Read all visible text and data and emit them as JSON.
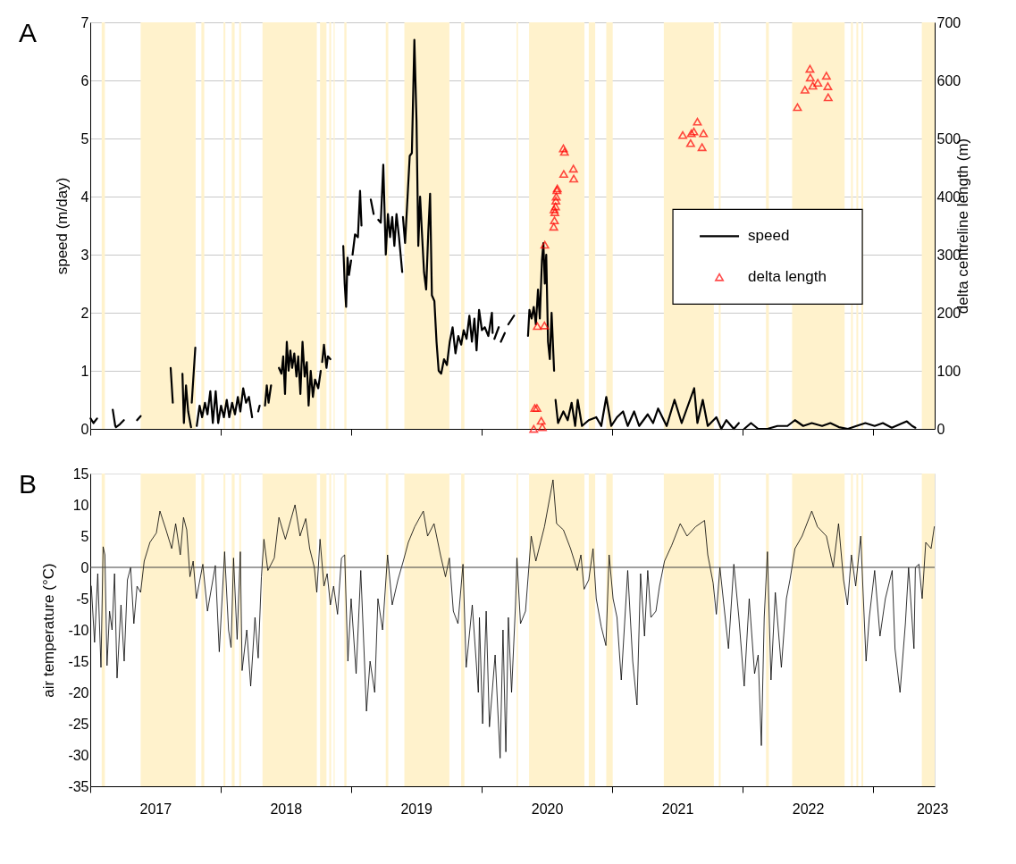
{
  "chart_data": [
    {
      "type": "line",
      "annotations": [
        "A"
      ],
      "ylabel": "speed (m/day)",
      "y2label": "delta centreline length (m)",
      "xlim": [
        "2017-01-01",
        "2023-06-22"
      ],
      "xticks": [
        {
          "value": "2017-01-01",
          "label": null
        },
        {
          "value": "2018-01-01",
          "label": null
        },
        {
          "value": "2019-01-01",
          "label": null
        },
        {
          "value": "2020-01-01",
          "label": null
        },
        {
          "value": "2021-01-01",
          "label": null
        },
        {
          "value": "2022-01-01",
          "label": null
        },
        {
          "value": "2023-01-01",
          "label": null
        }
      ],
      "ylim": [
        0,
        7
      ],
      "yticks": [
        0,
        1,
        2,
        3,
        4,
        5,
        6,
        7
      ],
      "y2lim": [
        0,
        700
      ],
      "y2ticks": [
        0,
        100,
        200,
        300,
        400,
        500,
        600,
        700
      ],
      "grid": "y",
      "legend": "right",
      "tick_labels": "y",
      "bands": [
        {
          "axis": "x",
          "from": "2017-02-02",
          "to": "2017-02-11",
          "color": "#fff2cc"
        },
        {
          "axis": "x",
          "from": "2017-05-22",
          "to": "2017-10-23",
          "color": "#fff2cc"
        },
        {
          "axis": "x",
          "from": "2017-11-08",
          "to": "2017-11-16",
          "color": "#fff2cc"
        },
        {
          "axis": "x",
          "from": "2018-01-09",
          "to": "2018-01-14",
          "color": "#fff2cc"
        },
        {
          "axis": "x",
          "from": "2018-02-01",
          "to": "2018-02-09",
          "color": "#fff2cc"
        },
        {
          "axis": "x",
          "from": "2018-02-22",
          "to": "2018-02-27",
          "color": "#fff2cc"
        },
        {
          "axis": "x",
          "from": "2018-04-28",
          "to": "2018-09-27",
          "color": "#fff2cc"
        },
        {
          "axis": "x",
          "from": "2018-10-06",
          "to": "2018-10-24",
          "color": "#fff2cc"
        },
        {
          "axis": "x",
          "from": "2018-11-01",
          "to": "2018-11-06",
          "color": "#fff2cc"
        },
        {
          "axis": "x",
          "from": "2018-11-13",
          "to": "2018-11-16",
          "color": "#fff2cc"
        },
        {
          "axis": "x",
          "from": "2018-12-13",
          "to": "2018-12-19",
          "color": "#fff2cc"
        },
        {
          "axis": "x",
          "from": "2019-04-08",
          "to": "2019-04-15",
          "color": "#fff2cc"
        },
        {
          "axis": "x",
          "from": "2019-05-30",
          "to": "2019-10-03",
          "color": "#fff2cc"
        },
        {
          "axis": "x",
          "from": "2019-11-05",
          "to": "2019-11-14",
          "color": "#fff2cc"
        },
        {
          "axis": "x",
          "from": "2020-04-08",
          "to": "2020-04-12",
          "color": "#fff2cc"
        },
        {
          "axis": "x",
          "from": "2020-05-13",
          "to": "2020-10-15",
          "color": "#fff2cc"
        },
        {
          "axis": "x",
          "from": "2020-10-27",
          "to": "2020-11-14",
          "color": "#fff2cc"
        },
        {
          "axis": "x",
          "from": "2020-12-15",
          "to": "2021-01-02",
          "color": "#fff2cc"
        },
        {
          "axis": "x",
          "from": "2021-05-25",
          "to": "2021-10-12",
          "color": "#fff2cc"
        },
        {
          "axis": "x",
          "from": "2021-10-26",
          "to": "2021-10-31",
          "color": "#fff2cc"
        },
        {
          "axis": "x",
          "from": "2022-03-07",
          "to": "2022-03-15",
          "color": "#fff2cc"
        },
        {
          "axis": "x",
          "from": "2022-05-19",
          "to": "2022-10-13",
          "color": "#fff2cc"
        },
        {
          "axis": "x",
          "from": "2022-10-31",
          "to": "2022-11-05",
          "color": "#fff2cc"
        },
        {
          "axis": "x",
          "from": "2022-11-15",
          "to": "2022-11-20",
          "color": "#fff2cc"
        },
        {
          "axis": "x",
          "from": "2022-11-29",
          "to": "2022-12-04",
          "color": "#fff2cc"
        },
        {
          "axis": "x",
          "from": "2023-05-17",
          "to": "2023-06-22",
          "color": "#fff2cc"
        }
      ],
      "series": [
        {
          "name": "speed",
          "type": "line",
          "color": "#000000",
          "x": [
            "2017-01-02",
            "2017-01-10",
            "2017-01-20",
            "2017-01-25",
            "2017-03-05",
            "2017-03-12",
            "2017-03-14",
            "2017-03-25",
            "2017-04-05",
            "2017-04-20",
            "2017-05-12",
            "2017-05-22",
            "2017-06-30",
            "2017-08-14",
            "2017-08-20",
            "2017-09-01",
            "2017-09-16",
            "2017-09-20",
            "2017-09-26",
            "2017-10-02",
            "2017-10-10",
            "2017-10-11",
            "2017-10-12",
            "2017-10-22",
            "2017-10-24",
            "2017-10-26",
            "2017-11-03",
            "2017-11-10",
            "2017-11-18",
            "2017-11-25",
            "2017-12-03",
            "2017-12-10",
            "2017-12-18",
            "2017-12-25",
            "2018-01-02",
            "2018-01-10",
            "2018-01-18",
            "2018-01-25",
            "2018-02-02",
            "2018-02-10",
            "2018-02-18",
            "2018-02-25",
            "2018-03-05",
            "2018-03-13",
            "2018-03-21",
            "2018-03-30",
            "2018-04-08",
            "2018-04-16",
            "2018-04-20",
            "2018-04-28",
            "2018-05-05",
            "2018-05-10",
            "2018-05-15",
            "2018-05-22",
            "2018-06-01",
            "2018-06-13",
            "2018-06-20",
            "2018-06-25",
            "2018-06-30",
            "2018-07-05",
            "2018-07-10",
            "2018-07-15",
            "2018-07-20",
            "2018-07-26",
            "2018-08-01",
            "2018-08-06",
            "2018-08-12",
            "2018-08-18",
            "2018-08-24",
            "2018-08-30",
            "2018-09-04",
            "2018-09-10",
            "2018-09-16",
            "2018-09-22",
            "2018-10-01",
            "2018-10-08",
            "2018-10-10",
            "2018-10-12",
            "2018-10-17",
            "2018-10-24",
            "2018-10-28",
            "2018-11-04",
            "2018-11-20",
            "2018-12-10",
            "2018-12-14",
            "2018-12-18",
            "2018-12-22",
            "2018-12-26",
            "2019-01-01",
            "2019-01-03",
            "2019-01-05",
            "2019-01-12",
            "2019-01-20",
            "2019-01-26",
            "2019-01-30",
            "2019-02-10",
            "2019-02-25",
            "2019-03-05",
            "2019-03-10",
            "2019-03-18",
            "2019-03-25",
            "2019-04-01",
            "2019-04-08",
            "2019-04-14",
            "2019-04-20",
            "2019-04-26",
            "2019-05-02",
            "2019-05-08",
            "2019-05-15",
            "2019-05-24",
            "2019-05-25",
            "2019-05-26",
            "2019-06-01",
            "2019-06-08",
            "2019-06-14",
            "2019-06-20",
            "2019-06-27",
            "2019-07-03",
            "2019-07-08",
            "2019-07-13",
            "2019-07-18",
            "2019-07-24",
            "2019-07-30",
            "2019-08-05",
            "2019-08-10",
            "2019-08-15",
            "2019-08-22",
            "2019-08-28",
            "2019-09-03",
            "2019-09-10",
            "2019-09-18",
            "2019-09-26",
            "2019-10-04",
            "2019-10-12",
            "2019-10-20",
            "2019-10-28",
            "2019-11-05",
            "2019-11-12",
            "2019-11-20",
            "2019-11-28",
            "2019-12-05",
            "2019-12-12",
            "2019-12-18",
            "2019-12-25",
            "2020-01-02",
            "2020-01-10",
            "2020-01-20",
            "2020-01-30",
            "2020-02-01",
            "2020-02-03",
            "2020-02-06",
            "2020-02-18",
            "2020-02-20",
            "2020-02-24",
            "2020-03-06",
            "2020-03-10",
            "2020-03-16",
            "2020-04-01",
            "2020-04-20",
            "2020-05-10",
            "2020-05-14",
            "2020-05-20",
            "2020-05-26",
            "2020-06-01",
            "2020-06-07",
            "2020-06-12",
            "2020-06-18",
            "2020-06-22",
            "2020-06-26",
            "2020-06-30",
            "2020-07-05",
            "2020-07-10",
            "2020-07-15",
            "2020-07-22",
            "2020-07-24",
            "2020-07-26",
            "2020-08-02",
            "2020-08-17",
            "2020-08-29",
            "2020-09-09",
            "2020-09-19",
            "2020-09-26",
            "2020-10-08",
            "2020-10-27",
            "2020-11-17",
            "2020-12-01",
            "2020-12-15",
            "2020-12-29",
            "2021-01-14",
            "2021-01-31",
            "2021-02-13",
            "2021-03-03",
            "2021-03-17",
            "2021-04-10",
            "2021-04-25",
            "2021-05-09",
            "2021-06-02",
            "2021-06-24",
            "2021-07-14",
            "2021-08-18",
            "2021-08-27",
            "2021-09-11",
            "2021-09-25",
            "2021-10-19",
            "2021-11-02",
            "2021-11-16",
            "2021-12-07",
            "2021-12-21",
            "2021-12-28",
            "2022-01-05",
            "2022-01-24",
            "2022-02-13",
            "2022-03-11",
            "2022-04-08",
            "2022-05-06",
            "2022-05-27",
            "2022-06-19",
            "2022-07-13",
            "2022-08-11",
            "2022-09-03",
            "2022-09-27",
            "2022-10-22",
            "2022-11-15",
            "2022-12-10",
            "2023-01-05",
            "2023-01-28",
            "2023-02-22",
            "2023-03-17",
            "2023-04-05",
            "2023-04-20",
            "2023-04-29"
          ],
          "values": [
            0.18,
            0.1,
            0.18,
            null,
            0.33,
            0.05,
            0.03,
            0.08,
            0.15,
            null,
            0.15,
            0.22,
            null,
            1.05,
            0.45,
            null,
            0.95,
            0.1,
            0.75,
            0.3,
            0.03,
            null,
            0.45,
            1.4,
            null,
            0.05,
            0.4,
            0.2,
            0.45,
            0.25,
            0.65,
            0.1,
            0.65,
            0.1,
            0.4,
            0.2,
            0.5,
            0.2,
            0.45,
            0.25,
            0.55,
            0.3,
            0.7,
            0.45,
            0.55,
            0.2,
            null,
            0.3,
            0.4,
            null,
            0.4,
            0.75,
            0.45,
            0.75,
            null,
            1.05,
            0.95,
            1.25,
            0.6,
            1.5,
            1.0,
            1.35,
            1.05,
            1.3,
            0.9,
            1.25,
            0.6,
            1.5,
            0.9,
            1.15,
            0.4,
            1.0,
            0.55,
            0.85,
            0.7,
            1.0,
            null,
            1.15,
            1.45,
            1.05,
            1.25,
            1.2,
            null,
            3.15,
            2.5,
            2.1,
            2.95,
            2.65,
            2.9,
            null,
            3.0,
            3.35,
            3.3,
            4.1,
            3.5,
            null,
            3.95,
            3.7,
            null,
            3.6,
            3.55,
            4.55,
            3.0,
            3.7,
            3.3,
            3.65,
            3.15,
            3.7,
            3.3,
            2.7,
            null,
            3.65,
            3.2,
            4.0,
            4.7,
            4.75,
            6.7,
            5.3,
            3.15,
            4.0,
            3.4,
            2.7,
            2.4,
            3.4,
            4.05,
            2.3,
            2.2,
            1.5,
            1.0,
            0.95,
            1.2,
            1.1,
            1.5,
            1.75,
            1.3,
            1.6,
            1.45,
            1.7,
            1.55,
            1.95,
            1.5,
            1.9,
            1.35,
            2.05,
            1.7,
            1.75,
            1.6,
            2.0,
            1.65,
            null,
            1.55,
            1.75,
            null,
            1.5,
            1.65,
            null,
            1.8,
            1.95,
            null,
            1.6,
            2.05,
            1.9,
            2.1,
            1.8,
            2.4,
            1.9,
            2.9,
            3.2,
            2.5,
            3.0,
            1.5,
            1.2,
            2.0,
            1.0,
            null,
            0.5,
            0.1,
            0.3,
            0.15,
            0.45,
            0.05,
            0.5,
            0.05,
            0.15,
            0.2,
            0.05,
            0.55,
            0.05,
            0.2,
            0.3,
            0.05,
            0.3,
            0.05,
            0.25,
            0.1,
            0.35,
            0.05,
            0.5,
            0.1,
            0.7,
            0.1,
            0.5,
            0.05,
            0.2,
            0.0,
            0.15,
            0.0,
            0.1,
            null,
            0.0,
            0.1,
            0.0,
            0.0,
            0.05,
            0.05,
            0.15,
            0.05,
            0.1,
            0.05,
            0.1,
            0.03,
            0.0,
            0.05,
            0.1,
            0.05,
            0.1,
            0.02,
            0.08,
            0.13,
            0.05,
            0.02
          ]
        },
        {
          "name": "delta length",
          "type": "scatter",
          "marker": "triangle",
          "axis": "y2",
          "color": "#ff0000",
          "x": [
            "2020-05-26",
            "2020-05-29",
            "2020-06-04",
            "2020-06-16",
            "2020-06-19",
            "2020-06-05",
            "2020-06-25",
            "2020-06-26",
            "2020-07-21",
            "2020-07-23",
            "2020-07-24",
            "2020-07-22",
            "2020-07-26",
            "2020-07-27",
            "2020-07-28",
            "2020-07-30",
            "2020-07-31",
            "2020-08-18",
            "2020-08-17",
            "2020-08-20",
            "2020-09-14",
            "2020-09-15",
            "2021-07-17",
            "2021-08-08",
            "2021-08-10",
            "2021-08-17",
            "2021-08-27",
            "2021-09-13",
            "2021-09-09",
            "2022-06-03",
            "2022-06-24",
            "2022-07-08",
            "2022-07-09",
            "2022-07-16",
            "2022-07-30",
            "2022-08-23",
            "2022-08-27",
            "2022-08-28"
          ],
          "values": [
            0,
            36,
            36,
            14,
            3,
            177,
            178,
            317,
            348,
            359,
            373,
            378,
            383,
            393,
            400,
            411,
            414,
            439,
            483,
            477,
            448,
            431,
            506,
            492,
            509,
            512,
            529,
            509,
            485,
            554,
            584,
            620,
            605,
            591,
            596,
            608,
            590,
            571
          ]
        }
      ]
    },
    {
      "type": "line",
      "annotations": [
        "B"
      ],
      "ylabel": "air temperature (°C)",
      "xlim": [
        "2017-01-01",
        "2023-06-22"
      ],
      "xticks": [
        {
          "value": "2017-01-01",
          "label": null
        },
        {
          "value": "2017-07-02",
          "label": "2017"
        },
        {
          "value": "2018-01-01",
          "label": null
        },
        {
          "value": "2018-07-02",
          "label": "2018"
        },
        {
          "value": "2019-01-01",
          "label": null
        },
        {
          "value": "2019-07-02",
          "label": "2019"
        },
        {
          "value": "2020-01-01",
          "label": null
        },
        {
          "value": "2020-07-02",
          "label": "2020"
        },
        {
          "value": "2021-01-01",
          "label": null
        },
        {
          "value": "2021-07-02",
          "label": "2021"
        },
        {
          "value": "2022-01-01",
          "label": null
        },
        {
          "value": "2022-07-02",
          "label": "2022"
        },
        {
          "value": "2023-01-01",
          "label": null
        },
        {
          "value": "2023-06-15",
          "label": "2023"
        }
      ],
      "ylim": [
        -35,
        15
      ],
      "yticks": [
        -35,
        -30,
        -25,
        -20,
        -15,
        -10,
        -5,
        0,
        5,
        10,
        15
      ],
      "grid": false,
      "ref_lines": [
        {
          "axis": "y",
          "value": 0,
          "color": "#404040"
        }
      ],
      "bands": [
        {
          "axis": "x",
          "from": "2017-02-02",
          "to": "2017-02-11",
          "color": "#fff2cc"
        },
        {
          "axis": "x",
          "from": "2017-05-22",
          "to": "2017-10-23",
          "color": "#fff2cc"
        },
        {
          "axis": "x",
          "from": "2017-11-08",
          "to": "2017-11-16",
          "color": "#fff2cc"
        },
        {
          "axis": "x",
          "from": "2018-01-09",
          "to": "2018-01-14",
          "color": "#fff2cc"
        },
        {
          "axis": "x",
          "from": "2018-02-01",
          "to": "2018-02-09",
          "color": "#fff2cc"
        },
        {
          "axis": "x",
          "from": "2018-02-22",
          "to": "2018-02-27",
          "color": "#fff2cc"
        },
        {
          "axis": "x",
          "from": "2018-04-28",
          "to": "2018-09-27",
          "color": "#fff2cc"
        },
        {
          "axis": "x",
          "from": "2018-10-06",
          "to": "2018-10-24",
          "color": "#fff2cc"
        },
        {
          "axis": "x",
          "from": "2018-11-01",
          "to": "2018-11-06",
          "color": "#fff2cc"
        },
        {
          "axis": "x",
          "from": "2018-11-13",
          "to": "2018-11-16",
          "color": "#fff2cc"
        },
        {
          "axis": "x",
          "from": "2018-12-13",
          "to": "2018-12-19",
          "color": "#fff2cc"
        },
        {
          "axis": "x",
          "from": "2019-04-08",
          "to": "2019-04-15",
          "color": "#fff2cc"
        },
        {
          "axis": "x",
          "from": "2019-05-30",
          "to": "2019-10-03",
          "color": "#fff2cc"
        },
        {
          "axis": "x",
          "from": "2019-11-05",
          "to": "2019-11-14",
          "color": "#fff2cc"
        },
        {
          "axis": "x",
          "from": "2020-04-08",
          "to": "2020-04-12",
          "color": "#fff2cc"
        },
        {
          "axis": "x",
          "from": "2020-05-13",
          "to": "2020-10-15",
          "color": "#fff2cc"
        },
        {
          "axis": "x",
          "from": "2020-10-27",
          "to": "2020-11-14",
          "color": "#fff2cc"
        },
        {
          "axis": "x",
          "from": "2020-12-15",
          "to": "2021-01-02",
          "color": "#fff2cc"
        },
        {
          "axis": "x",
          "from": "2021-05-25",
          "to": "2021-10-12",
          "color": "#fff2cc"
        },
        {
          "axis": "x",
          "from": "2021-10-26",
          "to": "2021-10-31",
          "color": "#fff2cc"
        },
        {
          "axis": "x",
          "from": "2022-03-07",
          "to": "2022-03-15",
          "color": "#fff2cc"
        },
        {
          "axis": "x",
          "from": "2022-05-19",
          "to": "2022-10-13",
          "color": "#fff2cc"
        },
        {
          "axis": "x",
          "from": "2022-10-31",
          "to": "2022-11-05",
          "color": "#fff2cc"
        },
        {
          "axis": "x",
          "from": "2022-11-15",
          "to": "2022-11-20",
          "color": "#fff2cc"
        },
        {
          "axis": "x",
          "from": "2022-11-29",
          "to": "2022-12-04",
          "color": "#fff2cc"
        },
        {
          "axis": "x",
          "from": "2023-05-17",
          "to": "2023-06-22",
          "color": "#fff2cc"
        }
      ],
      "series": [
        {
          "type": "line",
          "color": "#000000",
          "x": [
            "2017-01-04",
            "2017-01-13",
            "2017-01-22",
            "2017-01-31",
            "2017-02-06",
            "2017-02-11",
            "2017-02-17",
            "2017-02-24",
            "2017-03-03",
            "2017-03-10",
            "2017-03-17",
            "2017-03-28",
            "2017-04-06",
            "2017-04-15",
            "2017-04-24",
            "2017-05-03",
            "2017-05-12",
            "2017-05-22",
            "2017-06-01",
            "2017-06-17",
            "2017-07-05",
            "2017-07-15",
            "2017-08-01",
            "2017-08-17",
            "2017-08-28",
            "2017-09-10",
            "2017-09-19",
            "2017-09-28",
            "2017-10-07",
            "2017-10-16",
            "2017-10-25",
            "2017-11-12",
            "2017-11-25",
            "2017-12-17",
            "2017-12-28",
            "2018-01-12",
            "2018-01-23",
            "2018-01-30",
            "2018-02-06",
            "2018-02-16",
            "2018-02-25",
            "2018-03-02",
            "2018-03-15",
            "2018-03-26",
            "2018-04-07",
            "2018-04-16",
            "2018-04-25",
            "2018-05-02",
            "2018-05-13",
            "2018-05-31",
            "2018-06-13",
            "2018-07-01",
            "2018-07-28",
            "2018-08-11",
            "2018-08-27",
            "2018-09-07",
            "2018-09-20",
            "2018-09-27",
            "2018-10-06",
            "2018-10-17",
            "2018-10-26",
            "2018-11-04",
            "2018-11-13",
            "2018-11-24",
            "2018-12-05",
            "2018-12-14",
            "2018-12-23",
            "2019-01-01",
            "2019-01-15",
            "2019-01-28",
            "2019-02-13",
            "2019-02-23",
            "2019-03-08",
            "2019-03-17",
            "2019-03-30",
            "2019-04-13",
            "2019-04-26",
            "2019-05-12",
            "2019-05-27",
            "2019-06-10",
            "2019-06-28",
            "2019-07-22",
            "2019-08-03",
            "2019-08-21",
            "2019-09-08",
            "2019-09-22",
            "2019-10-03",
            "2019-10-14",
            "2019-10-27",
            "2019-11-10",
            "2019-11-19",
            "2019-12-06",
            "2019-12-23",
            "2019-12-26",
            "2020-01-04",
            "2020-01-14",
            "2020-01-23",
            "2020-02-08",
            "2020-02-22",
            "2020-03-01",
            "2020-03-09",
            "2020-03-16",
            "2020-03-25",
            "2020-04-05",
            "2020-04-09",
            "2020-04-19",
            "2020-05-03",
            "2020-05-13",
            "2020-05-19",
            "2020-06-01",
            "2020-06-25",
            "2020-07-19",
            "2020-07-29",
            "2020-08-17",
            "2020-09-06",
            "2020-09-25",
            "2020-10-05",
            "2020-10-14",
            "2020-10-27",
            "2020-11-08",
            "2020-11-17",
            "2020-12-01",
            "2020-12-14",
            "2020-12-23",
            "2021-01-03",
            "2021-01-14",
            "2021-01-26",
            "2021-02-13",
            "2021-02-27",
            "2021-03-11",
            "2021-03-21",
            "2021-04-01",
            "2021-04-10",
            "2021-04-19",
            "2021-05-03",
            "2021-05-13",
            "2021-05-27",
            "2021-06-16",
            "2021-07-10",
            "2021-07-29",
            "2021-08-22",
            "2021-09-16",
            "2021-09-25",
            "2021-10-10",
            "2021-10-19",
            "2021-10-29",
            "2021-11-22",
            "2021-12-07",
            "2021-12-21",
            "2022-01-05",
            "2022-01-19",
            "2022-02-03",
            "2022-02-13",
            "2022-02-22",
            "2022-03-02",
            "2022-03-11",
            "2022-03-21",
            "2022-04-02",
            "2022-04-19",
            "2022-05-03",
            "2022-05-13",
            "2022-05-27",
            "2022-06-16",
            "2022-07-13",
            "2022-07-29",
            "2022-08-23",
            "2022-09-11",
            "2022-09-26",
            "2022-10-10",
            "2022-10-21",
            "2022-11-01",
            "2022-11-13",
            "2022-11-27",
            "2022-12-12",
            "2022-12-21",
            "2023-01-05",
            "2023-01-20",
            "2023-02-04",
            "2023-02-23",
            "2023-03-03",
            "2023-03-17",
            "2023-04-01",
            "2023-04-10",
            "2023-04-25",
            "2023-04-29",
            "2023-05-09",
            "2023-05-18",
            "2023-05-28",
            "2023-06-12",
            "2023-06-21"
          ],
          "values": [
            -3,
            -12,
            -1,
            -16,
            3.3,
            2,
            -15.7,
            -7,
            -10,
            -1,
            -17.7,
            -6,
            -15,
            -2,
            0,
            -9,
            -3,
            -4,
            1,
            4,
            5.5,
            9,
            6,
            3,
            7,
            2,
            8,
            6,
            -1.5,
            1,
            -5,
            0.5,
            -7,
            0.3,
            -13.5,
            2.5,
            -10,
            -12.8,
            1.5,
            -11.5,
            2.5,
            -16.5,
            -10,
            -19,
            -8,
            -14.5,
            -1.5,
            4.5,
            -0.5,
            1.5,
            8,
            4.5,
            10,
            5,
            7.8,
            3,
            0,
            -4,
            4.5,
            -3,
            -1,
            -6,
            -3,
            -7.5,
            1.5,
            2,
            -15,
            -5,
            -17,
            -0.5,
            -23,
            -15,
            -20,
            -5,
            -10,
            2,
            -6,
            -2,
            1,
            4,
            6.5,
            9,
            5,
            7,
            2,
            -1.5,
            1.5,
            -7,
            -9,
            0.5,
            -16,
            -6,
            -20,
            -8,
            -25,
            -7,
            -25.5,
            -14,
            -30.5,
            -10,
            -29.5,
            -8,
            -20,
            -6,
            1.5,
            -9,
            -7,
            0.5,
            5,
            1,
            6.5,
            14,
            7,
            6,
            3,
            -0.5,
            2,
            -3.5,
            -2,
            3,
            -5,
            -9.5,
            -12.5,
            2,
            -5,
            -8,
            -18,
            -0.5,
            -15,
            -22,
            -1,
            -11,
            -0.5,
            -8,
            -7,
            -3,
            1,
            3.5,
            7,
            5,
            6.5,
            7.5,
            2,
            -2.5,
            -7.5,
            0,
            -13,
            0.5,
            -8,
            -19,
            -5,
            -17,
            -14,
            -28.5,
            -8,
            2.5,
            -18,
            -4,
            -16,
            -5,
            -2,
            3,
            5,
            9,
            6.5,
            5,
            0,
            7,
            -2,
            -6,
            2,
            -3,
            5,
            -15,
            -8,
            -0.5,
            -11,
            -5,
            -0.5,
            -13,
            -20,
            -9,
            0,
            -13,
            0,
            0.5,
            -5,
            4,
            3,
            6.5
          ]
        }
      ]
    }
  ]
}
